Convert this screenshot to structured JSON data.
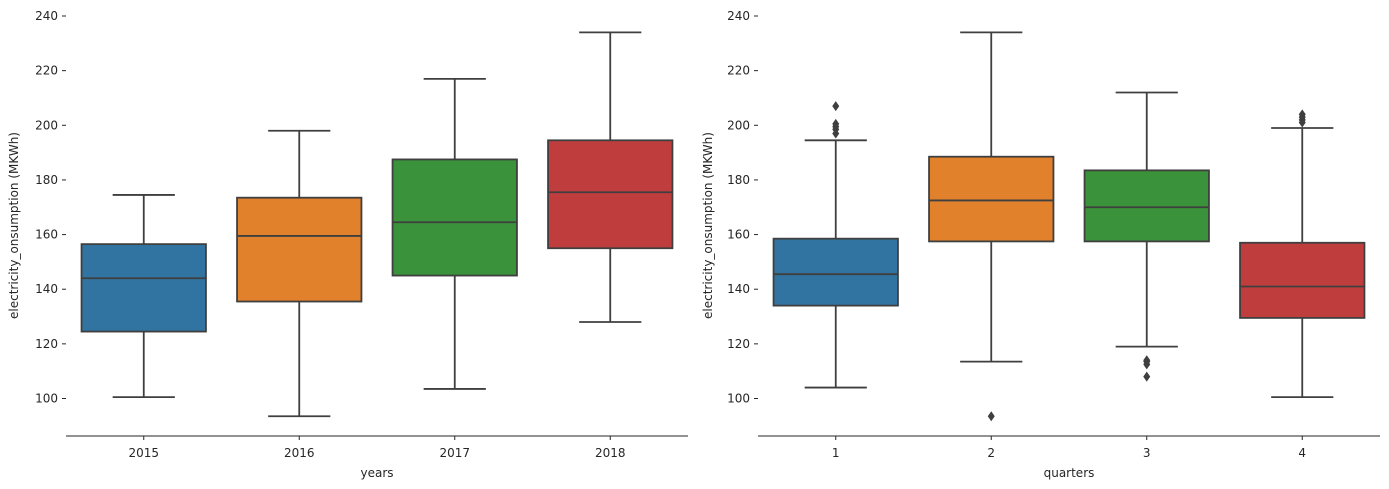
{
  "chart_data": [
    {
      "type": "box",
      "title": "",
      "xlabel": "years",
      "ylabel": "electricity_onsumption (MKWh)",
      "ylim": [
        87,
        240
      ],
      "yticks": [
        100,
        120,
        140,
        160,
        180,
        200,
        220,
        240
      ],
      "categories": [
        "2015",
        "2016",
        "2017",
        "2018"
      ],
      "colors": [
        "#3274a1",
        "#e1812c",
        "#3a923a",
        "#c03d3e"
      ],
      "boxes": [
        {
          "whislo": 100.5,
          "q1": 124.5,
          "med": 144,
          "q3": 156.5,
          "whishi": 174.5,
          "fliers": []
        },
        {
          "whislo": 93.5,
          "q1": 135.5,
          "med": 159.5,
          "q3": 173.5,
          "whishi": 198,
          "fliers": []
        },
        {
          "whislo": 103.5,
          "q1": 145,
          "med": 164.5,
          "q3": 187.5,
          "whishi": 217,
          "fliers": []
        },
        {
          "whislo": 128,
          "q1": 155,
          "med": 175.5,
          "q3": 194.5,
          "whishi": 234,
          "fliers": []
        }
      ]
    },
    {
      "type": "box",
      "title": "",
      "xlabel": "quarters",
      "ylabel": "electricity_onsumption (MKWh)",
      "ylim": [
        87,
        240
      ],
      "yticks": [
        100,
        120,
        140,
        160,
        180,
        200,
        220,
        240
      ],
      "categories": [
        "1",
        "2",
        "3",
        "4"
      ],
      "colors": [
        "#3274a1",
        "#e1812c",
        "#3a923a",
        "#c03d3e"
      ],
      "boxes": [
        {
          "whislo": 104,
          "q1": 134,
          "med": 145.5,
          "q3": 158.5,
          "whishi": 194.5,
          "fliers": [
            197,
            198.5,
            199.5,
            200.5,
            207
          ]
        },
        {
          "whislo": 113.5,
          "q1": 157.5,
          "med": 172.5,
          "q3": 188.5,
          "whishi": 234,
          "fliers": [
            93.5
          ]
        },
        {
          "whislo": 119,
          "q1": 157.5,
          "med": 170,
          "q3": 183.5,
          "whishi": 212,
          "fliers": [
            108,
            112.5,
            113.5,
            114
          ]
        },
        {
          "whislo": 100.5,
          "q1": 129.5,
          "med": 141,
          "q3": 157,
          "whishi": 199,
          "fliers": [
            201,
            202,
            203,
            204
          ]
        }
      ]
    }
  ]
}
